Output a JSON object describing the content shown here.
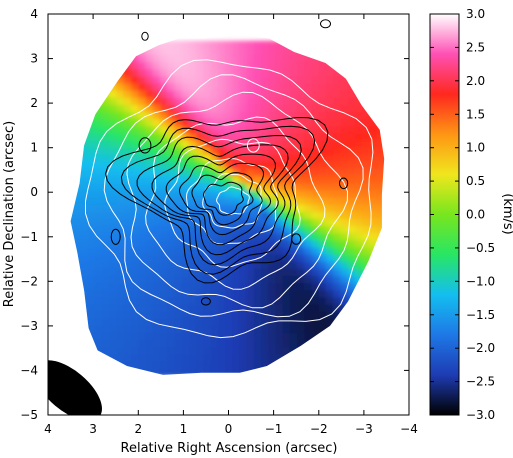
{
  "chart_data": {
    "type": "heatmap",
    "xlabel": "Relative Right Ascension (arcsec)",
    "ylabel": "Relative Declination (arcsec)",
    "xlim": [
      4,
      -4
    ],
    "ylim": [
      -5,
      4
    ],
    "xticks": [
      4,
      3,
      2,
      1,
      0,
      -1,
      -2,
      -3,
      -4
    ],
    "yticks": [
      4,
      3,
      2,
      1,
      0,
      -1,
      -2,
      -3,
      -4,
      -5
    ],
    "colorbar": {
      "label": "(km/s)",
      "range": [
        -3.0,
        3.0
      ],
      "ticks": [
        3.0,
        2.5,
        2.0,
        1.5,
        1.0,
        0.5,
        0.0,
        -0.5,
        -1.0,
        -1.5,
        -2.0,
        -2.5,
        -3.0
      ],
      "colormap": [
        "#000000",
        "#1e3cb4",
        "#1e78e6",
        "#14bef0",
        "#28e664",
        "#78e61e",
        "#f0e61e",
        "#ff9614",
        "#ff281e",
        "#ff50b4",
        "#ffffff"
      ]
    },
    "velocity_field": {
      "center_ra": -0.25,
      "center_dec": 0.1,
      "kinematic_major_axis_pa_deg": 150,
      "approaching_side": "south-east",
      "receding_side": "north-west",
      "min_velocity": -3.0,
      "max_velocity": 3.0
    },
    "white_contours": {
      "shape": "ellipse",
      "center_ra": -0.1,
      "center_dec": -0.2,
      "semi_axes_ra": [
        0.35,
        0.65,
        1.0,
        1.45,
        1.9,
        2.35,
        2.75,
        3.15
      ],
      "semi_axes_dec": [
        0.3,
        0.6,
        0.95,
        1.4,
        1.85,
        2.3,
        2.75,
        3.15
      ]
    },
    "black_contours": {
      "center_ra": 0.1,
      "center_dec": 0.1,
      "levels": 8
    },
    "beam": {
      "ra": 3.55,
      "dec": -4.45,
      "major_arcsec": 0.9,
      "minor_arcsec": 0.45,
      "pa_deg": -40
    }
  }
}
